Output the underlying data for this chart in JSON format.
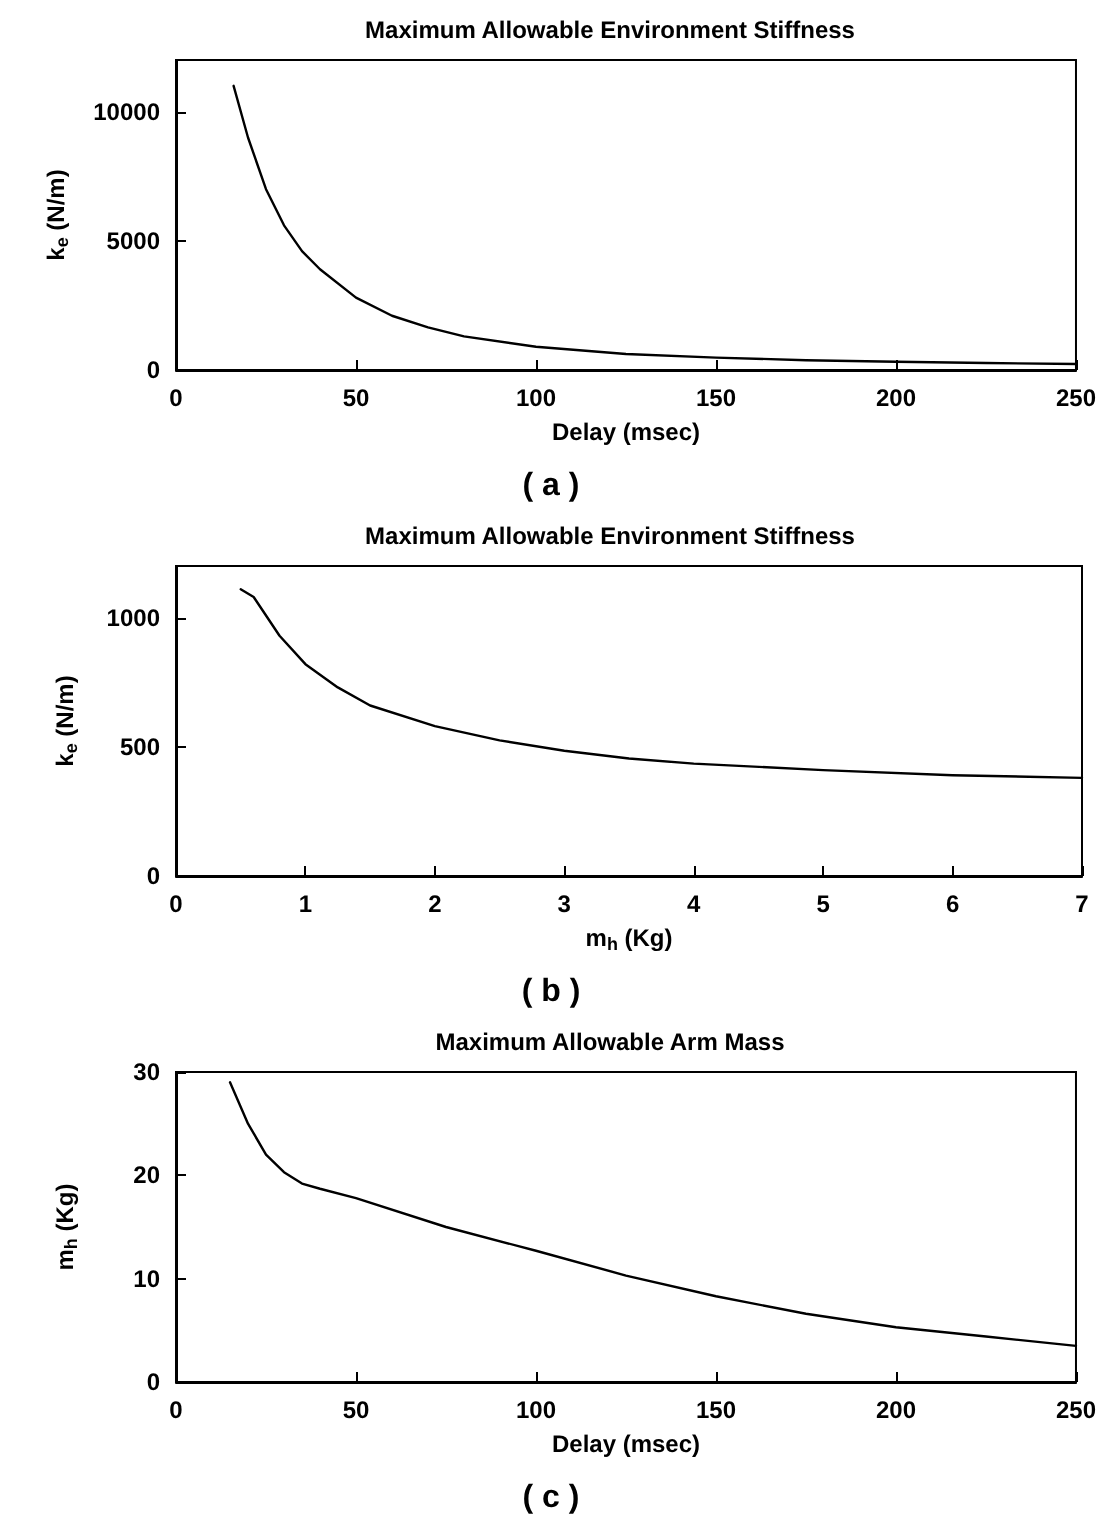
{
  "chart_data": [
    {
      "type": "line",
      "title": "Maximum Allowable Environment Stiffness",
      "xlabel": "Delay (msec)",
      "ylabel": "k$_{e}$ (N/m)",
      "annotations": [
        "( a )"
      ],
      "x": [
        16,
        20,
        25,
        30,
        35,
        40,
        50,
        60,
        70,
        80,
        100,
        125,
        150,
        175,
        200,
        225,
        250
      ],
      "series": [
        {
          "color": "#000000",
          "values": [
            11000,
            9000,
            7000,
            5600,
            4600,
            3900,
            2800,
            2100,
            1650,
            1300,
            900,
            620,
            480,
            380,
            320,
            270,
            230
          ]
        }
      ],
      "xlim": [
        0,
        250
      ],
      "xticks": [
        0,
        50,
        100,
        150,
        200,
        250
      ],
      "ylim": [
        0,
        12000
      ],
      "yticks": [
        0,
        5000,
        10000
      ],
      "grid": false,
      "marker": "none",
      "line_style": "solid"
    },
    {
      "type": "line",
      "title": "Maximum Allowable Environment Stiffness",
      "xlabel": "m$_{h}$ (Kg)",
      "ylabel": "k$_{e}$ (N/m)",
      "annotations": [
        "( b )"
      ],
      "x": [
        0.5,
        0.6,
        0.8,
        1.0,
        1.25,
        1.5,
        2,
        2.5,
        3,
        3.5,
        4,
        5,
        6,
        7
      ],
      "series": [
        {
          "color": "#000000",
          "values": [
            1110,
            1080,
            930,
            820,
            730,
            660,
            580,
            525,
            485,
            455,
            435,
            410,
            390,
            380
          ]
        }
      ],
      "xlim": [
        0,
        7
      ],
      "xticks": [
        0,
        1,
        2,
        3,
        4,
        5,
        6,
        7
      ],
      "ylim": [
        0,
        1200
      ],
      "yticks": [
        0,
        500,
        1000
      ],
      "grid": false,
      "marker": "none",
      "line_style": "solid"
    },
    {
      "type": "line",
      "title": "Maximum Allowable Arm Mass",
      "xlabel": "Delay (msec)",
      "ylabel": "m$_{h}$ (Kg)",
      "annotations": [
        "( c )"
      ],
      "x": [
        15,
        20,
        25,
        30,
        35,
        40,
        50,
        75,
        100,
        125,
        150,
        175,
        200,
        225,
        250
      ],
      "series": [
        {
          "color": "#000000",
          "values": [
            29,
            25,
            22,
            20.3,
            19.2,
            18.7,
            17.8,
            15,
            12.7,
            10.3,
            8.3,
            6.6,
            5.3,
            4.4,
            3.5
          ]
        }
      ],
      "xlim": [
        0,
        250
      ],
      "xticks": [
        0,
        50,
        100,
        150,
        200,
        250
      ],
      "ylim": [
        0,
        30
      ],
      "yticks": [
        0,
        10,
        20,
        30
      ],
      "grid": false,
      "marker": "none",
      "line_style": "solid"
    }
  ]
}
